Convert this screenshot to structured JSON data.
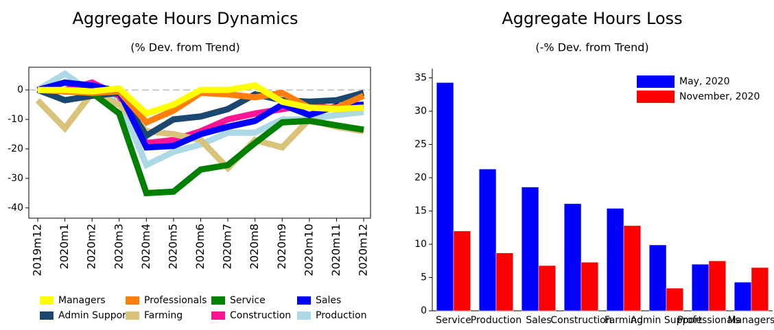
{
  "chart_data": [
    {
      "type": "line",
      "title": "Aggregate Hours Dynamics",
      "subtitle": "(% Dev. from Trend)",
      "categories": [
        "2019m12",
        "2020m1",
        "2020m2",
        "2020m3",
        "2020m4",
        "2020m5",
        "2020m6",
        "2020m7",
        "2020m8",
        "2020m9",
        "2020m10",
        "2020m11",
        "2020m12"
      ],
      "ylim": [
        -43.5,
        7.7
      ],
      "yticks": [
        0,
        -10,
        -20,
        -30,
        -40
      ],
      "reference_line": 0,
      "legend": "bottom",
      "series": [
        {
          "name": "Managers",
          "color": "#ffff00",
          "values": [
            0,
            0,
            -0.5,
            0.5,
            -8,
            -5,
            0,
            0,
            1.5,
            -4,
            -6,
            -6.5,
            -6
          ]
        },
        {
          "name": "Professionals",
          "color": "#ff7f0e",
          "values": [
            0,
            -0.5,
            -1,
            -0.5,
            -11,
            -7,
            -1,
            -1.5,
            -2.5,
            -1,
            -6,
            -6,
            -2
          ]
        },
        {
          "name": "Service",
          "color": "#008000",
          "values": [
            0,
            -0.5,
            -1,
            -8,
            -35,
            -34.5,
            -27,
            -25.5,
            -18,
            -11,
            -10.5,
            -12,
            -13.5
          ]
        },
        {
          "name": "Sales",
          "color": "#0000ff",
          "values": [
            0,
            2.5,
            1.5,
            -0.5,
            -19.5,
            -19,
            -15,
            -12.5,
            -10.5,
            -5,
            -8.5,
            -5.5,
            -5
          ]
        },
        {
          "name": "Admin Support",
          "color": "#1a476f",
          "values": [
            0,
            -3.5,
            -2,
            -1,
            -15.5,
            -10,
            -9,
            -6.5,
            -1.5,
            -3.5,
            -4,
            -3.5,
            -1
          ]
        },
        {
          "name": "Farming",
          "color": "#d9c27a",
          "values": [
            -3.5,
            -13,
            -1,
            -5,
            -14,
            -15,
            -17,
            -26.5,
            -17,
            -19.5,
            -10,
            -12.5,
            -14
          ]
        },
        {
          "name": "Construction",
          "color": "#ff1493",
          "values": [
            0,
            0,
            2.5,
            -2,
            -18,
            -17,
            -14,
            -10,
            -8,
            -6.5,
            -5,
            -6.5,
            -6
          ]
        },
        {
          "name": "Production",
          "color": "#add8e6",
          "values": [
            0,
            5.5,
            -1,
            -3.5,
            -25.5,
            -21,
            -18.5,
            -14.5,
            -14.5,
            -10,
            -10,
            -8.5,
            -7.5
          ]
        }
      ]
    },
    {
      "type": "bar",
      "title": "Aggregate Hours Loss",
      "subtitle": "(-% Dev. from Trend)",
      "categories": [
        "Service",
        "Production",
        "Sales",
        "Construction",
        "Farming",
        "Admin Support",
        "Professionals",
        "Managers"
      ],
      "ylim": [
        0,
        36.4
      ],
      "yticks": [
        0,
        5,
        10,
        15,
        20,
        25,
        30,
        35
      ],
      "legend": "top-right",
      "series": [
        {
          "name": "May, 2020",
          "color": "#0000ff",
          "values": [
            34.3,
            21.3,
            18.6,
            16.1,
            15.4,
            9.9,
            7.0,
            4.3
          ]
        },
        {
          "name": "November, 2020",
          "color": "#ff0000",
          "values": [
            12.0,
            8.7,
            6.8,
            7.3,
            12.8,
            3.4,
            7.5,
            6.5
          ]
        }
      ]
    }
  ]
}
